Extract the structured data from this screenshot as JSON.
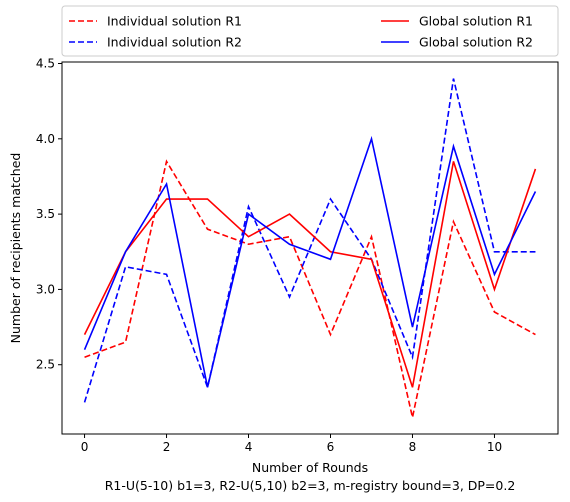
{
  "chart_data": {
    "type": "line",
    "xlabel": "Number of Rounds",
    "caption": "R1-U(5-10) b1=3, R2-U(5,10) b2=3, m-registry bound=3, DP=0.2",
    "ylabel": "Number of recipients matched",
    "xlim": [
      -0.55,
      11.55
    ],
    "ylim": [
      2.04,
      4.51
    ],
    "xticks": [
      0,
      2,
      4,
      6,
      8,
      10
    ],
    "yticks": [
      2.5,
      3.0,
      3.5,
      4.0,
      4.5
    ],
    "xtick_labels": [
      "0",
      "2",
      "4",
      "6",
      "8",
      "10"
    ],
    "ytick_labels": [
      "2.5",
      "3.0",
      "3.5",
      "4.0",
      "4.5"
    ],
    "grid": false,
    "legend_placement": "above plot, two columns",
    "x": [
      0,
      1,
      2,
      3,
      4,
      5,
      6,
      7,
      8,
      9,
      10,
      11
    ],
    "series": [
      {
        "name": "Individual solution R1",
        "color": "#ff0000",
        "style": "dashed",
        "values": [
          2.55,
          2.65,
          3.85,
          3.4,
          3.3,
          3.35,
          2.7,
          3.35,
          2.15,
          3.45,
          2.85,
          2.7
        ]
      },
      {
        "name": "Individual solution R2",
        "color": "#0000ff",
        "style": "dashed",
        "values": [
          2.25,
          3.15,
          3.1,
          2.35,
          3.55,
          2.95,
          3.6,
          3.2,
          2.55,
          4.4,
          3.25,
          3.25
        ]
      },
      {
        "name": "Global solution R1",
        "color": "#ff0000",
        "style": "solid",
        "values": [
          2.7,
          3.25,
          3.6,
          3.6,
          3.35,
          3.5,
          3.25,
          3.2,
          2.35,
          3.85,
          3.0,
          3.8
        ]
      },
      {
        "name": "Global solution R2",
        "color": "#0000ff",
        "style": "solid",
        "values": [
          2.6,
          3.25,
          3.7,
          2.35,
          3.5,
          3.3,
          3.2,
          4.0,
          2.75,
          3.95,
          3.1,
          3.65
        ]
      }
    ]
  }
}
